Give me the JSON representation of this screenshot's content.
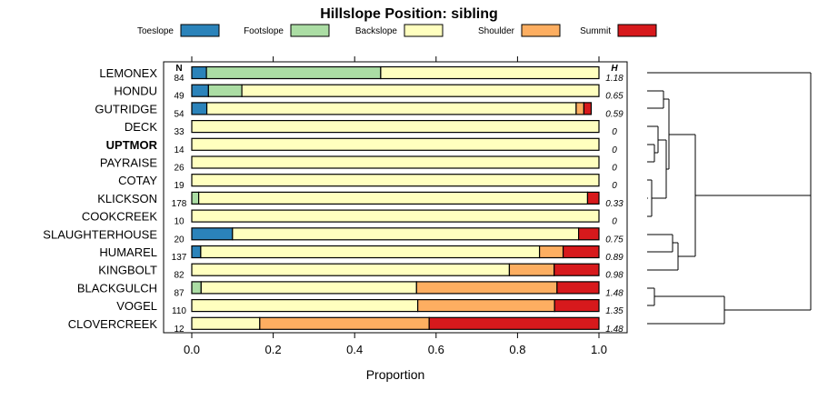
{
  "chart_data": {
    "type": "bar",
    "orientation": "horizontal",
    "stacked": true,
    "title": "Hillslope Position: sibling",
    "xlabel": "Proportion",
    "xlim": [
      0,
      1
    ],
    "x_ticks": [
      "0.0",
      "0.2",
      "0.4",
      "0.6",
      "0.8",
      "1.0"
    ],
    "x_tick_values": [
      0,
      0.2,
      0.4,
      0.6,
      0.8,
      1.0
    ],
    "n_header": "N",
    "h_header": "H",
    "legend_placement": "top",
    "grid": false,
    "colors": {
      "Toeslope": "#2b83ba",
      "Footslope": "#abdda4",
      "Backslope": "#ffffbf",
      "Shoulder": "#fdae61",
      "Summit": "#d7191c"
    },
    "legend": [
      "Toeslope",
      "Footslope",
      "Backslope",
      "Shoulder",
      "Summit"
    ],
    "highlight": "UPTMOR",
    "categories": [
      "LEMONEX",
      "HONDU",
      "GUTRIDGE",
      "DECK",
      "UPTMOR",
      "PAYRAISE",
      "COTAY",
      "KLICKSON",
      "COOKCREEK",
      "SLAUGHTERHOUSE",
      "HUMAREL",
      "KINGBOLT",
      "BLACKGULCH",
      "VOGEL",
      "CLOVERCREEK"
    ],
    "n": [
      "84",
      "49",
      "54",
      "33",
      "14",
      "26",
      "19",
      "178",
      "10",
      "20",
      "137",
      "82",
      "87",
      "110",
      "12"
    ],
    "h": [
      "1.18",
      "0.65",
      "0.59",
      "0",
      "0",
      "0",
      "0",
      "0.33",
      "0",
      "0.75",
      "0.89",
      "0.98",
      "1.48",
      "1.35",
      "1.48"
    ],
    "series": [
      {
        "name": "Toeslope",
        "values": [
          0.036,
          0.041,
          0.037,
          0,
          0,
          0,
          0,
          0,
          0,
          0.1,
          0.022,
          0,
          0,
          0,
          0
        ]
      },
      {
        "name": "Footslope",
        "values": [
          0.428,
          0.082,
          0,
          0,
          0,
          0,
          0,
          0.017,
          0,
          0,
          0,
          0,
          0.023,
          0,
          0
        ]
      },
      {
        "name": "Backslope",
        "values": [
          0.536,
          0.877,
          0.907,
          1,
          1,
          1,
          1,
          0.955,
          1,
          0.85,
          0.832,
          0.78,
          0.529,
          0.555,
          0.167
        ]
      },
      {
        "name": "Shoulder",
        "values": [
          0,
          0,
          0.019,
          0,
          0,
          0,
          0,
          0,
          0,
          0,
          0.058,
          0.11,
          0.345,
          0.336,
          0.416
        ]
      },
      {
        "name": "Summit",
        "values": [
          0,
          0,
          0.018,
          0,
          0,
          0,
          0,
          0.028,
          0,
          0.05,
          0.088,
          0.11,
          0.103,
          0.109,
          0.417
        ]
      }
    ]
  }
}
